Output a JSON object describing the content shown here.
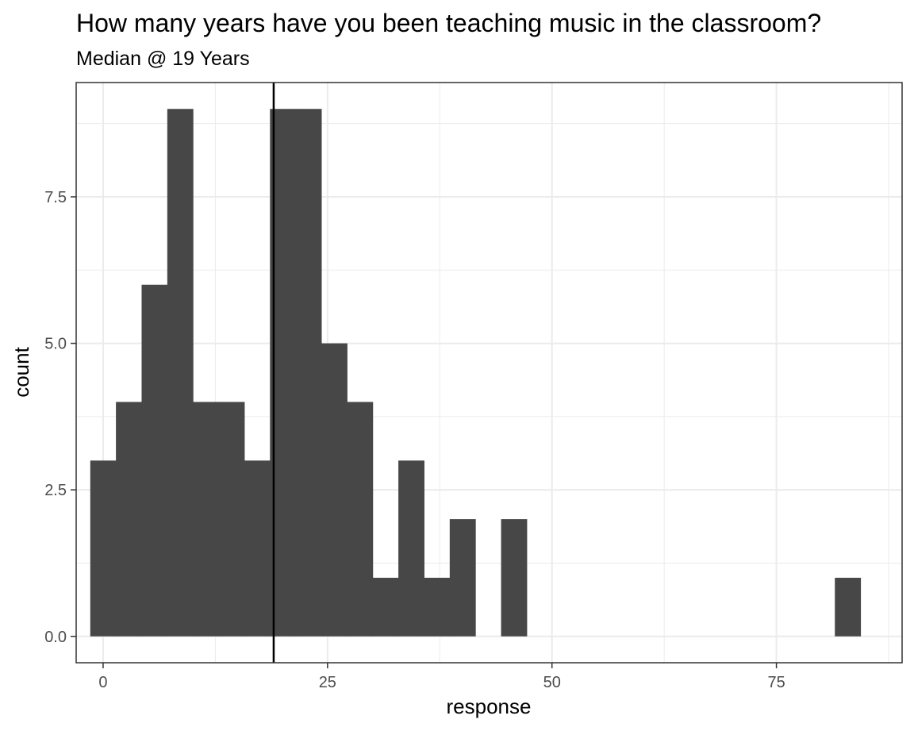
{
  "chart_data": {
    "type": "bar",
    "title": "How many years have you been teaching music in the classroom?",
    "subtitle": "Median @ 19 Years",
    "xlabel": "response",
    "ylabel": "count",
    "xlim": [
      -3,
      89
    ],
    "ylim": [
      -0.45,
      9.45
    ],
    "x_ticks": [
      0,
      25,
      50,
      75
    ],
    "x_tick_labels": [
      "0",
      "25",
      "50",
      "75"
    ],
    "y_ticks": [
      0,
      2.5,
      5,
      7.5
    ],
    "y_tick_labels": [
      "0.0",
      "2.5",
      "5.0",
      "7.5"
    ],
    "grid": true,
    "bin_width": 2.86,
    "bins": [
      {
        "x0": -1.43,
        "x1": 1.43,
        "count": 3
      },
      {
        "x0": 1.43,
        "x1": 4.29,
        "count": 4
      },
      {
        "x0": 4.29,
        "x1": 7.15,
        "count": 6
      },
      {
        "x0": 7.15,
        "x1": 10.01,
        "count": 9
      },
      {
        "x0": 10.01,
        "x1": 12.87,
        "count": 4
      },
      {
        "x0": 12.87,
        "x1": 15.73,
        "count": 4
      },
      {
        "x0": 15.73,
        "x1": 18.59,
        "count": 3
      },
      {
        "x0": 18.59,
        "x1": 21.45,
        "count": 9
      },
      {
        "x0": 21.45,
        "x1": 24.31,
        "count": 9
      },
      {
        "x0": 24.31,
        "x1": 27.17,
        "count": 5
      },
      {
        "x0": 27.17,
        "x1": 30.03,
        "count": 4
      },
      {
        "x0": 30.03,
        "x1": 32.89,
        "count": 1
      },
      {
        "x0": 32.89,
        "x1": 35.75,
        "count": 3
      },
      {
        "x0": 35.75,
        "x1": 38.61,
        "count": 1
      },
      {
        "x0": 38.61,
        "x1": 41.47,
        "count": 2
      },
      {
        "x0": 41.47,
        "x1": 44.33,
        "count": 0
      },
      {
        "x0": 44.33,
        "x1": 47.19,
        "count": 2
      },
      {
        "x0": 81.51,
        "x1": 84.37,
        "count": 1
      }
    ],
    "median_line": {
      "x": 19
    }
  }
}
